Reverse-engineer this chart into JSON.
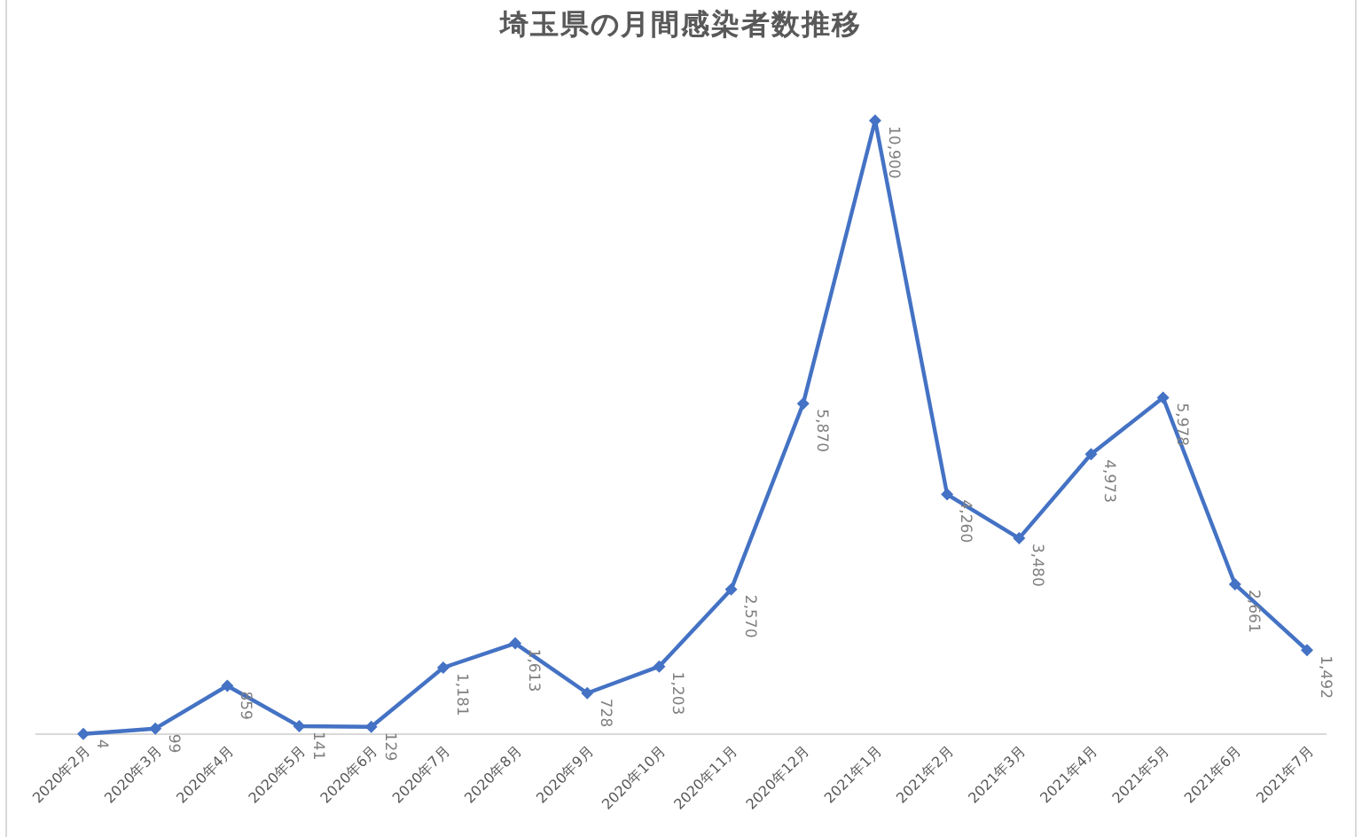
{
  "chart_data": {
    "type": "line",
    "title": "埼玉県の月間感染者数推移",
    "categories": [
      "2020年2月",
      "2020年3月",
      "2020年4月",
      "2020年5月",
      "2020年6月",
      "2020年7月",
      "2020年8月",
      "2020年9月",
      "2020年10月",
      "2020年11月",
      "2020年12月",
      "2021年1月",
      "2021年2月",
      "2021年3月",
      "2021年4月",
      "2021年5月",
      "2021年6月",
      "2021年7月"
    ],
    "series": [
      {
        "color": "#4472c4",
        "values": [
          4,
          99,
          859,
          141,
          129,
          1181,
          1613,
          728,
          1203,
          2570,
          5870,
          10900,
          4260,
          3480,
          4973,
          5978,
          2661,
          1492
        ],
        "value_labels": [
          "4",
          "99",
          "859",
          "141",
          "129",
          "1,181",
          "1,613",
          "728",
          "1,203",
          "2,570",
          "5,870",
          "10,900",
          "4,260",
          "3,480",
          "4,973",
          "5,978",
          "2,661",
          "1,492"
        ]
      }
    ],
    "marker": "diamond",
    "line_style": "solid",
    "tick_labels": "x"
  }
}
